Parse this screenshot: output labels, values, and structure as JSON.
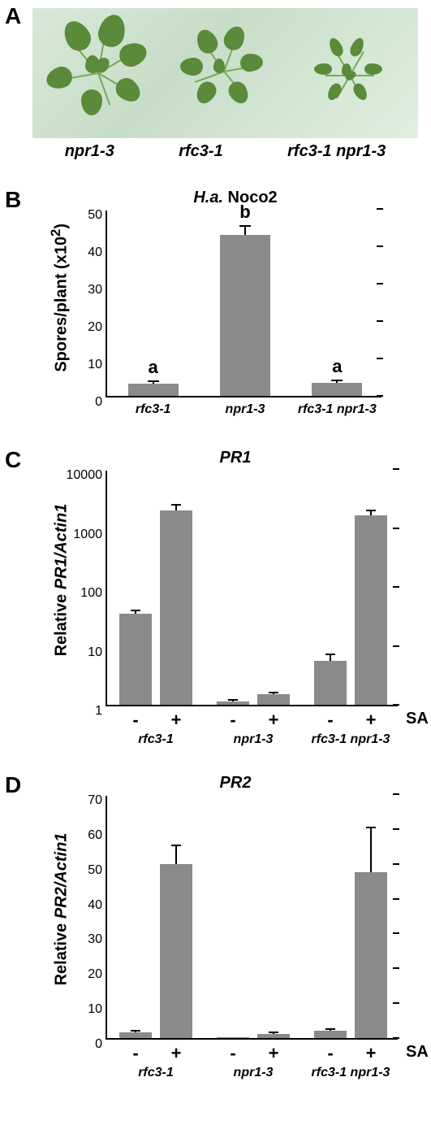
{
  "panelA": {
    "label": "A",
    "genotypes": [
      "npr1-3",
      "rfc3-1",
      "rfc3-1 npr1-3"
    ]
  },
  "panelB": {
    "label": "B",
    "title_prefix": "H.a.",
    "title_suffix": " Noco2",
    "ylabel_prefix": "Spores/plant (x10",
    "ylabel_sup": "2",
    "ylabel_suffix": ")",
    "ylim": [
      0,
      50
    ],
    "yticks": [
      0,
      10,
      20,
      30,
      40,
      50
    ],
    "bars": [
      {
        "x": "rfc3-1",
        "value": 3.2,
        "err": 0.7,
        "sig": "a"
      },
      {
        "x": "npr1-3",
        "value": 43,
        "err": 2.5,
        "sig": "b"
      },
      {
        "x": "rfc3-1 npr1-3",
        "value": 3.5,
        "err": 0.7,
        "sig": "a"
      }
    ],
    "bar_color": "#8a8a8a"
  },
  "panelC": {
    "label": "C",
    "title": "PR1",
    "ylabel_prefix": "Relative ",
    "ylabel_suffix": "PR1/Actin1",
    "scale": "log",
    "ylim": [
      1,
      10000
    ],
    "yticks": [
      1,
      10,
      100,
      1000,
      10000
    ],
    "groups": [
      "rfc3-1",
      "npr1-3",
      "rfc3-1 npr1-3"
    ],
    "treatments": [
      "-",
      "+"
    ],
    "treatment_label": "SA",
    "bars": [
      {
        "group": 0,
        "trt": 0,
        "value": 35,
        "err_top": 40
      },
      {
        "group": 0,
        "trt": 1,
        "value": 2000,
        "err_top": 2500
      },
      {
        "group": 1,
        "trt": 0,
        "value": 1.15,
        "err_top": 1.22
      },
      {
        "group": 1,
        "trt": 1,
        "value": 1.5,
        "err_top": 1.6
      },
      {
        "group": 2,
        "trt": 0,
        "value": 5.5,
        "err_top": 7.2
      },
      {
        "group": 2,
        "trt": 1,
        "value": 1650,
        "err_top": 1950
      }
    ],
    "bar_color": "#8a8a8a"
  },
  "panelD": {
    "label": "D",
    "title": "PR2",
    "ylabel_prefix": "Relative ",
    "ylabel_suffix": "PR2/Actin1",
    "scale": "linear",
    "ylim": [
      0,
      70
    ],
    "yticks": [
      0,
      10,
      20,
      30,
      40,
      50,
      60,
      70
    ],
    "groups": [
      "rfc3-1",
      "npr1-3",
      "rfc3-1 npr1-3"
    ],
    "treatments": [
      "-",
      "+"
    ],
    "treatment_label": "SA",
    "bars": [
      {
        "group": 0,
        "trt": 0,
        "value": 1.6,
        "err_top": 2.0
      },
      {
        "group": 0,
        "trt": 1,
        "value": 50,
        "err_top": 55.2
      },
      {
        "group": 1,
        "trt": 0,
        "value": 0.25,
        "err_top": 0.45
      },
      {
        "group": 1,
        "trt": 1,
        "value": 1.2,
        "err_top": 1.6
      },
      {
        "group": 2,
        "trt": 0,
        "value": 2.0,
        "err_top": 2.5
      },
      {
        "group": 2,
        "trt": 1,
        "value": 47.5,
        "err_top": 60.5
      }
    ],
    "bar_color": "#8a8a8a"
  }
}
